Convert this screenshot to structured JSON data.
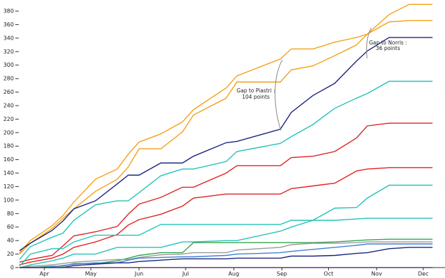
{
  "chart_data": {
    "type": "line",
    "x": [
      75,
      82,
      96,
      103,
      110,
      124,
      138,
      145,
      152,
      166,
      180,
      187,
      208,
      215,
      243,
      250,
      264,
      278,
      292,
      299,
      313,
      326,
      333,
      341
    ],
    "xlim": [
      75,
      349
    ],
    "xticks": [
      {
        "value": 91,
        "label": "Apr"
      },
      {
        "value": 121,
        "label": "May"
      },
      {
        "value": 152,
        "label": "Jun"
      },
      {
        "value": 182,
        "label": "Jul"
      },
      {
        "value": 213,
        "label": "Aug"
      },
      {
        "value": 244,
        "label": "Sep"
      },
      {
        "value": 274,
        "label": "Oct"
      },
      {
        "value": 305,
        "label": "Nov"
      },
      {
        "value": 335,
        "label": "Dec"
      }
    ],
    "ylim": [
      0,
      380
    ],
    "yticks": [
      0,
      20,
      40,
      60,
      80,
      100,
      120,
      140,
      160,
      180,
      200,
      220,
      240,
      260,
      280,
      300,
      320,
      340,
      360,
      380
    ],
    "series": [
      {
        "color": "#f5a015",
        "values": [
          22,
          40,
          62,
          77,
          97,
          131,
          146,
          168,
          186,
          198,
          216,
          234,
          266,
          284,
          309,
          324,
          324,
          334,
          341,
          346,
          375,
          390,
          390,
          390
        ]
      },
      {
        "color": "#f5a015",
        "values": [
          20,
          36,
          58,
          73,
          87,
          113,
          131,
          149,
          176,
          176,
          201,
          226,
          251,
          275,
          275,
          293,
          299,
          314,
          330,
          346,
          364,
          366,
          366,
          366
        ]
      },
      {
        "color": "#1a237e",
        "values": [
          25,
          36,
          55,
          69,
          87,
          99,
          124,
          137,
          137,
          155,
          155,
          165,
          185,
          187,
          205,
          230,
          255,
          273,
          306,
          321,
          341,
          341,
          341,
          341
        ]
      },
      {
        "color": "#22c3b8",
        "values": [
          12,
          31,
          45,
          51,
          70,
          93,
          99,
          99,
          111,
          136,
          146,
          146,
          157,
          172,
          184,
          194,
          212,
          236,
          251,
          258,
          276,
          276,
          276,
          276
        ]
      },
      {
        "color": "#e02020",
        "values": [
          8,
          12,
          18,
          32,
          47,
          53,
          61,
          79,
          94,
          104,
          119,
          119,
          140,
          151,
          151,
          163,
          165,
          172,
          192,
          210,
          214,
          214,
          214,
          214
        ]
      },
      {
        "color": "#e02020",
        "values": [
          4,
          8,
          14,
          20,
          30,
          38,
          49,
          63,
          71,
          79,
          91,
          103,
          109,
          109,
          109,
          117,
          121,
          125,
          143,
          146,
          148,
          148,
          148,
          148
        ]
      },
      {
        "color": "#22c3b8",
        "values": [
          0,
          4,
          10,
          14,
          20,
          20,
          30,
          30,
          30,
          30,
          38,
          38,
          40,
          40,
          54,
          60,
          70,
          88,
          89,
          103,
          122,
          122,
          122,
          122
        ]
      },
      {
        "color": "#22c3b8",
        "values": [
          2,
          20,
          28,
          28,
          38,
          48,
          48,
          48,
          48,
          64,
          64,
          64,
          64,
          64,
          64,
          70,
          70,
          70,
          72,
          73,
          73,
          73,
          73,
          73
        ]
      },
      {
        "color": "#2ea44f",
        "values": [
          0,
          0,
          2,
          2,
          6,
          6,
          10,
          14,
          18,
          22,
          22,
          37,
          37,
          37,
          37,
          37,
          37,
          38,
          40,
          41,
          42,
          42,
          42,
          42
        ]
      },
      {
        "color": "#999999",
        "values": [
          0,
          2,
          4,
          6,
          8,
          10,
          12,
          12,
          15,
          19,
          20,
          22,
          22,
          26,
          30,
          34,
          36,
          36,
          37,
          38,
          38,
          38,
          38,
          38
        ]
      },
      {
        "color": "#3f7fd6",
        "values": [
          0,
          0,
          1,
          3,
          5,
          7,
          7,
          11,
          14,
          15,
          16,
          16,
          18,
          20,
          22,
          24,
          27,
          30,
          33,
          35,
          35,
          35,
          35,
          35
        ]
      },
      {
        "color": "#1a237e",
        "values": [
          0,
          0,
          0,
          0,
          3,
          5,
          7,
          7,
          9,
          11,
          13,
          13,
          13,
          14,
          14,
          17,
          17,
          18,
          21,
          22,
          28,
          30,
          30,
          30
        ]
      },
      {
        "color": "#b05bd6",
        "values": [
          0,
          0,
          0,
          0,
          0,
          0,
          0,
          0,
          0,
          0,
          0,
          0,
          0,
          0,
          0,
          0,
          0,
          0,
          0,
          0,
          0,
          0,
          0,
          0
        ]
      }
    ],
    "annotations": [
      {
        "lines": [
          "Gap to Piastri :",
          "104 points"
        ]
      },
      {
        "lines": [
          "Gap to Norris :",
          "36 points"
        ]
      }
    ]
  }
}
